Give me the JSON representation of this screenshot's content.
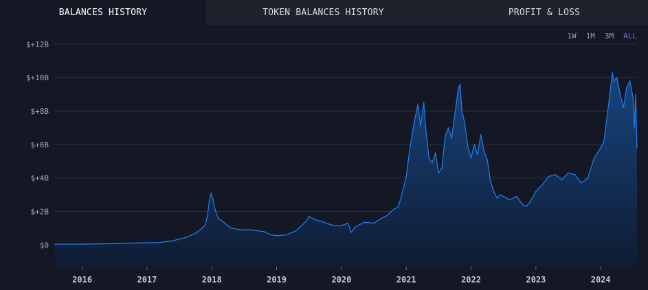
{
  "tabs": [
    {
      "label": "BALANCES HISTORY",
      "active": true
    },
    {
      "label": "TOKEN BALANCES HISTORY",
      "active": false
    },
    {
      "label": "PROFIT & LOSS",
      "active": false
    }
  ],
  "ranges": [
    {
      "label": "1W",
      "active": false
    },
    {
      "label": "1M",
      "active": false
    },
    {
      "label": "3M",
      "active": false
    },
    {
      "label": "ALL",
      "active": true
    }
  ],
  "colors": {
    "line": "#1f7ae8",
    "fill_top": "#17457e",
    "fill_bottom": "#101c33",
    "grid": "#2b303c",
    "active_range": "#8f6ad9"
  },
  "chart_data": {
    "type": "area",
    "title": "",
    "xlabel": "",
    "ylabel": "",
    "y_ticks": [
      {
        "value": 0,
        "label": "$0"
      },
      {
        "value": 2,
        "label": "$+2B"
      },
      {
        "value": 4,
        "label": "$+4B"
      },
      {
        "value": 6,
        "label": "$+6B"
      },
      {
        "value": 8,
        "label": "$+8B"
      },
      {
        "value": 10,
        "label": "$+10B"
      },
      {
        "value": 12,
        "label": "$+12B"
      }
    ],
    "x_ticks": [
      {
        "value": 2016.0,
        "label": "2016"
      },
      {
        "value": 2017.0,
        "label": "2017"
      },
      {
        "value": 2018.0,
        "label": "2018"
      },
      {
        "value": 2019.0,
        "label": "2019"
      },
      {
        "value": 2020.0,
        "label": "2020"
      },
      {
        "value": 2021.0,
        "label": "2021"
      },
      {
        "value": 2022.0,
        "label": "2022"
      },
      {
        "value": 2023.0,
        "label": "2023"
      },
      {
        "value": 2024.0,
        "label": "2024"
      }
    ],
    "xlim": [
      2015.58,
      2024.56
    ],
    "ylim": [
      -1.3,
      13.0
    ],
    "grid": "horizontal",
    "legend": "none",
    "x": [
      2015.58,
      2016.0,
      2016.5,
      2016.9,
      2017.2,
      2017.4,
      2017.6,
      2017.75,
      2017.85,
      2017.9,
      2017.93,
      2017.96,
      2017.99,
      2018.02,
      2018.05,
      2018.1,
      2018.2,
      2018.3,
      2018.45,
      2018.6,
      2018.8,
      2018.92,
      2019.0,
      2019.15,
      2019.3,
      2019.45,
      2019.5,
      2019.6,
      2019.7,
      2019.8,
      2019.9,
      2020.0,
      2020.1,
      2020.15,
      2020.22,
      2020.35,
      2020.5,
      2020.6,
      2020.7,
      2020.8,
      2020.88,
      2020.93,
      2020.97,
      2021.0,
      2021.05,
      2021.12,
      2021.18,
      2021.22,
      2021.27,
      2021.3,
      2021.35,
      2021.4,
      2021.45,
      2021.5,
      2021.55,
      2021.6,
      2021.65,
      2021.7,
      2021.75,
      2021.8,
      2021.83,
      2021.86,
      2021.9,
      2021.95,
      2022.0,
      2022.05,
      2022.1,
      2022.15,
      2022.2,
      2022.25,
      2022.3,
      2022.35,
      2022.4,
      2022.45,
      2022.5,
      2022.6,
      2022.7,
      2022.8,
      2022.85,
      2022.9,
      2023.0,
      2023.1,
      2023.2,
      2023.3,
      2023.4,
      2023.5,
      2023.6,
      2023.7,
      2023.8,
      2023.9,
      2024.0,
      2024.05,
      2024.1,
      2024.15,
      2024.18,
      2024.2,
      2024.25,
      2024.3,
      2024.35,
      2024.4,
      2024.45,
      2024.5,
      2024.52,
      2024.54,
      2024.56
    ],
    "values": [
      0.05,
      0.05,
      0.08,
      0.12,
      0.15,
      0.25,
      0.45,
      0.7,
      1.0,
      1.2,
      1.7,
      2.6,
      3.1,
      2.7,
      2.1,
      1.6,
      1.3,
      1.0,
      0.9,
      0.9,
      0.8,
      0.6,
      0.55,
      0.6,
      0.85,
      1.4,
      1.7,
      1.5,
      1.4,
      1.25,
      1.15,
      1.15,
      1.3,
      0.75,
      1.1,
      1.35,
      1.3,
      1.55,
      1.75,
      2.1,
      2.3,
      3.0,
      3.6,
      4.1,
      5.6,
      7.3,
      8.4,
      7.1,
      8.5,
      7.0,
      5.2,
      4.9,
      5.5,
      4.3,
      4.6,
      6.5,
      7.0,
      6.4,
      7.8,
      9.3,
      9.6,
      8.0,
      7.3,
      5.9,
      5.2,
      6.0,
      5.4,
      6.6,
      5.6,
      5.1,
      3.8,
      3.2,
      2.8,
      3.0,
      2.9,
      2.7,
      2.9,
      2.4,
      2.3,
      2.5,
      3.2,
      3.6,
      4.1,
      4.2,
      3.9,
      4.3,
      4.2,
      3.7,
      4.0,
      5.2,
      5.8,
      6.2,
      7.7,
      9.3,
      10.3,
      9.8,
      10.0,
      9.0,
      8.2,
      9.4,
      9.8,
      8.8,
      7.0,
      9.0,
      5.8
    ]
  }
}
